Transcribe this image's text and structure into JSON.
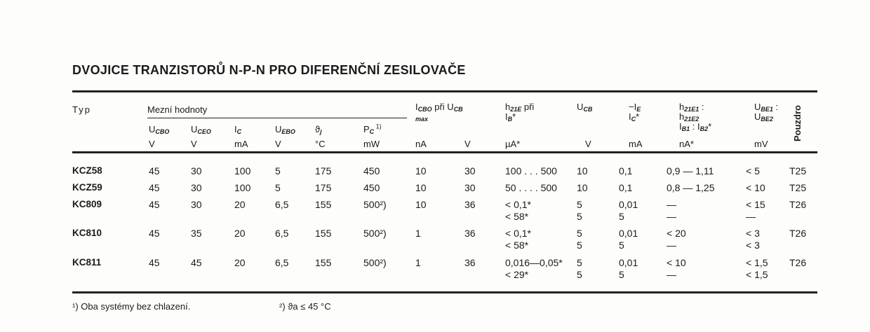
{
  "title": "DVOJICE TRANZISTORŮ N-P-N PRO DIFERENČNÍ ZESILOVAČE",
  "header": {
    "typ": "Typ",
    "group": "Mezní hodnoty",
    "pouzdro": "Pouzdro",
    "columns": [
      {
        "main": "U",
        "sub": "CBO",
        "unit": "V"
      },
      {
        "main": "U",
        "sub": "CEO",
        "unit": "V"
      },
      {
        "main": "I",
        "sub": "C",
        "unit": "mA"
      },
      {
        "main": "U",
        "sub": "EBO",
        "unit": "V"
      },
      {
        "main": "ϑ",
        "sub": "j",
        "unit": "°C"
      },
      {
        "main": "P",
        "sub": "C",
        "sup": "1)",
        "unit": "mW"
      },
      {
        "main": "I",
        "sub": "CBO",
        "extra": " při U",
        "sub2": "CB",
        "line2": "max",
        "unit": "nA"
      },
      {
        "unit": "V"
      },
      {
        "main": "h",
        "sub": "21E",
        "extra": "   při",
        "line2": "I",
        "line2sub": "B",
        "line2post": "*",
        "unit": "µA*"
      },
      {
        "main": "U",
        "sub": "CB",
        "unit": "V"
      },
      {
        "main": "−I",
        "sub": "E",
        "line2": "I",
        "line2sub": "C",
        "line2post": "*",
        "unit": "mA"
      },
      {
        "main": "h",
        "sub": "21E1",
        "extra": " :",
        "line2": "h",
        "line2sub": "21E2",
        "line3": "I",
        "line3sub": "B1",
        "line3mid": " : I",
        "line3sub2": "B2",
        "line3post": "*",
        "unit": "nA*"
      },
      {
        "main": "U",
        "sub": "BE1",
        "extra": " :",
        "line2": "U",
        "line2sub": "BE2",
        "unit": "mV"
      }
    ]
  },
  "rows": [
    {
      "typ": "KCZ58",
      "cells": [
        "45",
        "30",
        "100",
        "5",
        "175",
        "450",
        "10",
        "30",
        "100 . . . 500",
        "10",
        "0,1",
        "0,9 — 1,11",
        "< 5",
        "T25"
      ],
      "cells2": []
    },
    {
      "typ": "KCZ59",
      "cells": [
        "45",
        "30",
        "100",
        "5",
        "175",
        "450",
        "10",
        "30",
        "50 . . . . 500",
        "10",
        "0,1",
        "0,8 — 1,25",
        "< 10",
        "T25"
      ],
      "cells2": []
    },
    {
      "typ": "KC809",
      "cells": [
        "45",
        "30",
        "20",
        "6,5",
        "155",
        "500²)",
        "10",
        "36",
        "< 0,1*",
        "5",
        "0,01",
        "—",
        "< 15",
        "T26"
      ],
      "cells2": [
        "",
        "",
        "",
        "",
        "",
        "",
        "",
        "",
        "< 58*",
        "5",
        "5",
        "—",
        "—",
        ""
      ]
    },
    {
      "typ": "KC810",
      "cells": [
        "45",
        "35",
        "20",
        "6,5",
        "155",
        "500²)",
        "1",
        "36",
        "< 0,1*",
        "5",
        "0,01",
        "< 20",
        "< 3",
        "T26"
      ],
      "cells2": [
        "",
        "",
        "",
        "",
        "",
        "",
        "",
        "",
        "< 58*",
        "5",
        "5",
        "—",
        "< 3",
        ""
      ]
    },
    {
      "typ": "KC811",
      "cells": [
        "45",
        "45",
        "20",
        "6,5",
        "155",
        "500²)",
        "1",
        "36",
        "0,016—0,05*",
        "5",
        "0,01",
        "< 10",
        "< 1,5",
        "T26"
      ],
      "cells2": [
        "",
        "",
        "",
        "",
        "",
        "",
        "",
        "",
        "< 29*",
        "5",
        "5",
        "—",
        "< 1,5",
        ""
      ]
    }
  ],
  "footnotes": [
    "¹) Oba systémy bez chlazení.",
    "²) ϑa ≤ 45 °C"
  ]
}
